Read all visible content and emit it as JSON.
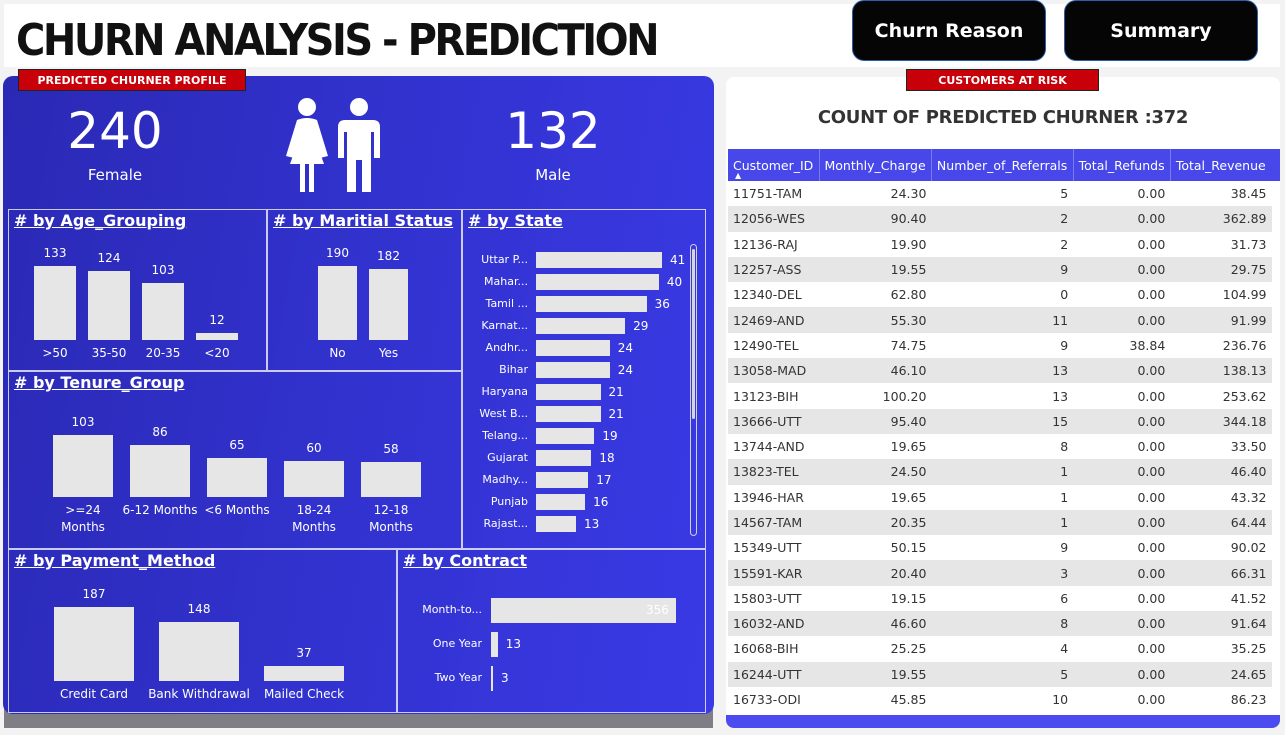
{
  "header": {
    "title": "CHURN ANALYSIS - PREDICTION",
    "buttons": {
      "churn_reason": "Churn Reason",
      "summary": "Summary"
    }
  },
  "profile": {
    "tag": "PREDICTED CHURNER PROFILE",
    "female": {
      "value": "240",
      "label": "Female"
    },
    "male": {
      "value": "132",
      "label": "Male"
    },
    "people_icon": "female-male-icon"
  },
  "charts": {
    "age": {
      "title": "# by Age_Grouping",
      "categories": [
        ">50",
        "35-50",
        "20-35",
        "<20"
      ],
      "values": [
        133,
        124,
        103,
        12
      ]
    },
    "marital": {
      "title": "# by Maritial Status",
      "categories": [
        "No",
        "Yes"
      ],
      "values": [
        190,
        182
      ]
    },
    "state": {
      "title": "# by State",
      "categories": [
        "Uttar P...",
        "Mahar...",
        "Tamil ...",
        "Karnat...",
        "Andhr...",
        "Bihar",
        "Haryana",
        "West B...",
        "Telang...",
        "Gujarat",
        "Madhy...",
        "Punjab",
        "Rajast..."
      ],
      "values": [
        41,
        40,
        36,
        29,
        24,
        24,
        21,
        21,
        19,
        18,
        17,
        16,
        13
      ]
    },
    "tenure": {
      "title": "# by Tenure_Group",
      "categories": [
        ">=24 Months",
        "6-12 Months",
        "<6 Months",
        "18-24 Months",
        "12-18 Months"
      ],
      "values": [
        103,
        86,
        65,
        60,
        58
      ]
    },
    "payment": {
      "title": "# by Payment_Method",
      "categories": [
        "Credit Card",
        "Bank Withdrawal",
        "Mailed Check"
      ],
      "values": [
        187,
        148,
        37
      ]
    },
    "contract": {
      "title": "# by Contract",
      "categories": [
        "Month-to...",
        "One Year",
        "Two Year"
      ],
      "values": [
        356,
        13,
        3
      ]
    }
  },
  "risk": {
    "tag": "CUSTOMERS AT RISK",
    "title": "COUNT OF PREDICTED CHURNER :372",
    "columns": [
      "Customer_ID",
      "Monthly_Charge",
      "Number_of_Referrals",
      "Total_Refunds",
      "Total_Revenue"
    ],
    "sort_icon": "sort-up-icon",
    "rows": [
      [
        "11751-TAM",
        "24.30",
        "5",
        "0.00",
        "38.45"
      ],
      [
        "12056-WES",
        "90.40",
        "2",
        "0.00",
        "362.89"
      ],
      [
        "12136-RAJ",
        "19.90",
        "2",
        "0.00",
        "31.73"
      ],
      [
        "12257-ASS",
        "19.55",
        "9",
        "0.00",
        "29.75"
      ],
      [
        "12340-DEL",
        "62.80",
        "0",
        "0.00",
        "104.99"
      ],
      [
        "12469-AND",
        "55.30",
        "11",
        "0.00",
        "91.99"
      ],
      [
        "12490-TEL",
        "74.75",
        "9",
        "38.84",
        "236.76"
      ],
      [
        "13058-MAD",
        "46.10",
        "13",
        "0.00",
        "138.13"
      ],
      [
        "13123-BIH",
        "100.20",
        "13",
        "0.00",
        "253.62"
      ],
      [
        "13666-UTT",
        "95.40",
        "15",
        "0.00",
        "344.18"
      ],
      [
        "13744-AND",
        "19.65",
        "8",
        "0.00",
        "33.50"
      ],
      [
        "13823-TEL",
        "24.50",
        "1",
        "0.00",
        "46.40"
      ],
      [
        "13946-HAR",
        "19.65",
        "1",
        "0.00",
        "43.32"
      ],
      [
        "14567-TAM",
        "20.35",
        "1",
        "0.00",
        "64.44"
      ],
      [
        "15349-UTT",
        "50.15",
        "9",
        "0.00",
        "90.02"
      ],
      [
        "15591-KAR",
        "20.40",
        "3",
        "0.00",
        "66.31"
      ],
      [
        "15803-UTT",
        "19.15",
        "6",
        "0.00",
        "41.52"
      ],
      [
        "16032-AND",
        "46.60",
        "8",
        "0.00",
        "91.64"
      ],
      [
        "16068-BIH",
        "25.25",
        "4",
        "0.00",
        "35.25"
      ],
      [
        "16244-UTT",
        "19.55",
        "5",
        "0.00",
        "24.65"
      ],
      [
        "16733-ODI",
        "45.85",
        "10",
        "0.00",
        "86.23"
      ]
    ]
  }
}
